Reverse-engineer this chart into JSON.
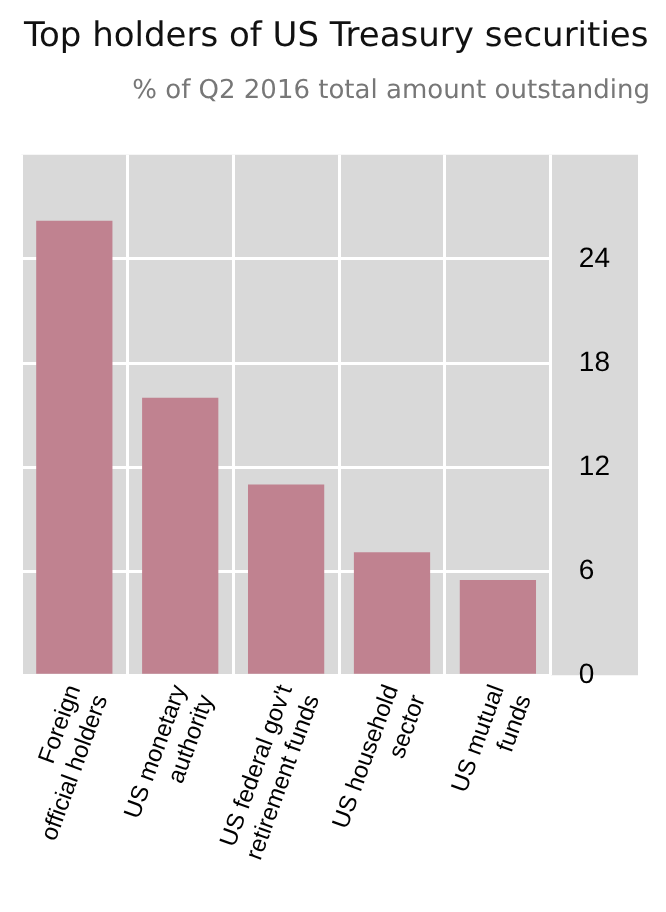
{
  "chart_data": {
    "type": "bar",
    "title": "Top holders of US Treasury securities",
    "subtitle": "% of Q2 2016 total amount outstanding",
    "categories": [
      "Foreign official holders",
      "US monetary authority",
      "US federal gov't retirement funds",
      "US household sector",
      "US mutual funds"
    ],
    "values": [
      26.2,
      16.0,
      11.0,
      7.1,
      5.5
    ],
    "color": "#c08290",
    "ylim": [
      0,
      30
    ],
    "yticks": [
      0,
      6,
      12,
      18,
      24
    ],
    "grid": true
  }
}
